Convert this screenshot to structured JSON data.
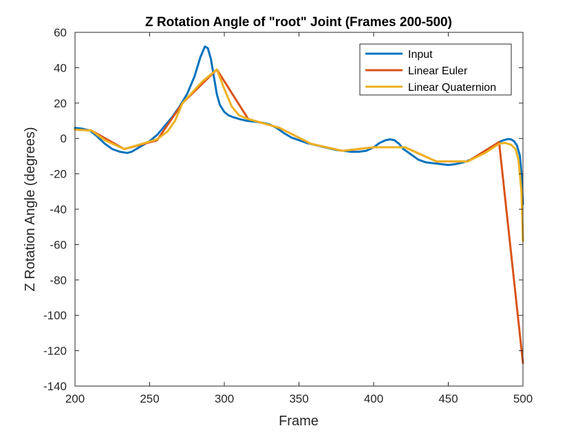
{
  "chart_data": {
    "type": "line",
    "title": "Z Rotation Angle of \"root\" Joint (Frames 200-500)",
    "xlabel": "Frame",
    "ylabel": "Z Rotation Angle (degrees)",
    "xlim": [
      200,
      500
    ],
    "ylim": [
      -140,
      60
    ],
    "xticks": [
      200,
      250,
      300,
      350,
      400,
      450,
      500
    ],
    "yticks": [
      -140,
      -120,
      -100,
      -80,
      -60,
      -40,
      -20,
      0,
      20,
      40,
      60
    ],
    "grid": false,
    "legend_position": "top-right",
    "series": [
      {
        "name": "Input",
        "color": "#0072BD",
        "x": [
          200,
          205,
          210,
          215,
          220,
          225,
          230,
          235,
          238,
          242,
          246,
          250,
          255,
          260,
          265,
          270,
          275,
          280,
          284,
          287,
          289,
          291,
          293,
          295,
          297,
          300,
          303,
          306,
          310,
          315,
          320,
          325,
          330,
          335,
          340,
          345,
          350,
          355,
          360,
          365,
          370,
          375,
          380,
          385,
          390,
          395,
          400,
          404,
          408,
          411,
          414,
          417,
          420,
          425,
          430,
          435,
          440,
          445,
          450,
          455,
          460,
          465,
          470,
          475,
          480,
          484,
          487,
          490,
          492,
          494,
          496,
          498,
          499,
          500
        ],
        "y": [
          6,
          5.5,
          4.5,
          1,
          -3,
          -6,
          -7.5,
          -8.2,
          -7.5,
          -5.5,
          -3.5,
          -1.5,
          2,
          7,
          12,
          18,
          25,
          35,
          46,
          52,
          51,
          45,
          35,
          25,
          19,
          15,
          13,
          12,
          11,
          10,
          9.5,
          9,
          8,
          6,
          3,
          0.5,
          -1,
          -2.5,
          -3.5,
          -4.5,
          -5.5,
          -6.5,
          -7,
          -7.5,
          -7.5,
          -7,
          -5,
          -2.5,
          -1,
          -0.5,
          -1,
          -3,
          -6,
          -9,
          -12,
          -13.5,
          -14,
          -14.5,
          -15,
          -14.5,
          -13.5,
          -12,
          -10,
          -7.5,
          -4.5,
          -2,
          -1,
          -0.3,
          -0.5,
          -1.5,
          -4,
          -10,
          -20,
          -37
        ]
      },
      {
        "name": "Linear Euler",
        "color": "#D95319",
        "x": [
          200,
          211,
          233,
          255,
          272,
          295,
          316,
          337,
          358,
          379,
          400,
          421,
          442,
          463,
          484,
          500
        ],
        "y": [
          5,
          4.5,
          -6,
          -1,
          20,
          39,
          11,
          6,
          -3,
          -7,
          -5,
          -5,
          -13,
          -13,
          -2,
          -127
        ]
      },
      {
        "name": "Linear Quaternion",
        "color": "#EDB120",
        "x": [
          200,
          211,
          220,
          233,
          245,
          255,
          262,
          267,
          272,
          285,
          295,
          300,
          305,
          310,
          316,
          337,
          358,
          379,
          400,
          421,
          442,
          463,
          475,
          484,
          488,
          492,
          495,
          497,
          499,
          500
        ],
        "y": [
          5,
          4.5,
          -1,
          -6,
          -3,
          -0.5,
          4,
          10,
          20,
          32,
          39,
          28,
          18,
          13,
          11,
          6,
          -3,
          -7,
          -5,
          -5,
          -13,
          -13,
          -8,
          -3,
          -2.5,
          -3.5,
          -6,
          -12,
          -30,
          -58
        ]
      }
    ]
  }
}
